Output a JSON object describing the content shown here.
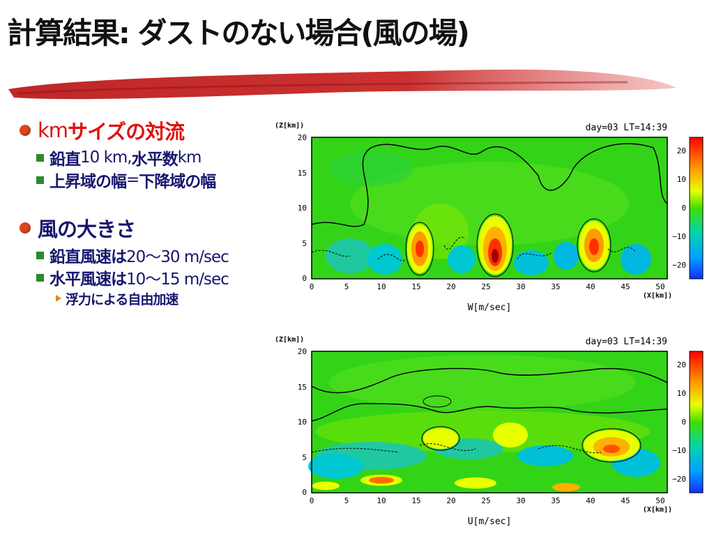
{
  "slide": {
    "title": "計算結果: ダストのない場合(風の場)"
  },
  "bullets": [
    {
      "text_a": "km ",
      "text_b": "サイズの対流",
      "color": "#e01010"
    },
    {
      "sub": [
        {
          "a": "鉛直",
          "b": " 10 km, ",
          "c": "水平数",
          "d": " km"
        },
        {
          "a": "上昇域の幅",
          "b": " = ",
          "c": "下降域の幅",
          "d": ""
        }
      ]
    },
    {
      "text_a": "風の大きさ",
      "text_b": "",
      "color": "#16166e"
    },
    {
      "sub": [
        {
          "a": "鉛直風速は",
          "b": " 20〜30 m/sec"
        },
        {
          "a": "水平風速は",
          "b": " 10〜15 m/sec"
        }
      ]
    },
    {
      "sub3": "浮力による自由加速"
    }
  ],
  "plots": [
    {
      "ylabel": "(Z[km])",
      "xlabel": "(X[km])",
      "caption": "W[m/sec]",
      "header": "day=03  LT=14:39",
      "yticks": [
        "20",
        "15",
        "10",
        "5",
        "0"
      ],
      "xticks": [
        "0",
        "5",
        "10",
        "15",
        "20",
        "25",
        "30",
        "35",
        "40",
        "45",
        "50"
      ],
      "cbar_ticks": [
        "20",
        "10",
        "0",
        "−10",
        "−20"
      ]
    },
    {
      "ylabel": "(Z[km])",
      "xlabel": "(X[km])",
      "caption": "U[m/sec]",
      "header": "day=03  LT=14:39",
      "yticks": [
        "20",
        "15",
        "10",
        "5",
        "0"
      ],
      "xticks": [
        "0",
        "5",
        "10",
        "15",
        "20",
        "25",
        "30",
        "35",
        "40",
        "45",
        "50"
      ],
      "cbar_ticks": [
        "20",
        "10",
        "0",
        "−10",
        "−20"
      ]
    }
  ]
}
